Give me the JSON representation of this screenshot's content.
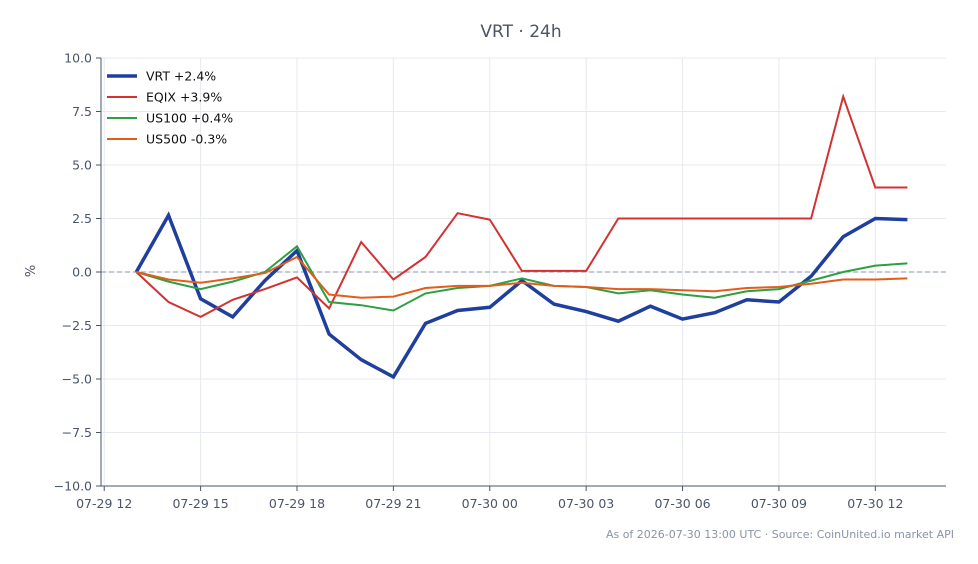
{
  "chart_data": {
    "type": "line",
    "title": "VRT · 24h",
    "xlabel": "",
    "ylabel": "%",
    "ylim": [
      -10,
      10
    ],
    "y_ticks": [
      10.0,
      7.5,
      5.0,
      2.5,
      0.0,
      -2.5,
      -5.0,
      -7.5,
      -10.0
    ],
    "y_tick_labels": [
      "10.0",
      "7.5",
      "5.0",
      "2.5",
      "0.0",
      "−2.5",
      "−5.0",
      "−7.5",
      "−10.0"
    ],
    "x_tick_labels": [
      "07-29 12",
      "07-29 15",
      "07-29 18",
      "07-29 21",
      "07-30 00",
      "07-30 03",
      "07-30 06",
      "07-30 09",
      "07-30 12"
    ],
    "x_tick_hours": [
      12,
      15,
      18,
      21,
      24,
      27,
      30,
      33,
      36
    ],
    "x_range_hours": [
      11.9,
      38.2
    ],
    "x_hours": [
      13,
      14,
      15,
      16,
      17,
      18,
      19,
      20,
      21,
      22,
      23,
      24,
      25,
      26,
      27,
      28,
      29,
      30,
      31,
      32,
      33,
      34,
      35,
      36,
      37
    ],
    "reference_line": 0,
    "grid": true,
    "legend_position": "top-left",
    "series": [
      {
        "name": "VRT +2.4%",
        "color": "#1f3f9e",
        "width": 3.5,
        "values": [
          0.0,
          2.65,
          -1.25,
          -2.1,
          -0.4,
          1.0,
          -2.9,
          -4.1,
          -4.9,
          -2.4,
          -1.8,
          -1.65,
          -0.4,
          -1.5,
          -1.85,
          -2.3,
          -1.6,
          -2.2,
          -1.9,
          -1.3,
          -1.4,
          -0.2,
          1.65,
          2.5,
          2.45
        ]
      },
      {
        "name": "EQIX +3.9%",
        "color": "#d23232",
        "width": 2,
        "values": [
          0.0,
          -1.4,
          -2.1,
          -1.3,
          -0.8,
          -0.25,
          -1.7,
          1.4,
          -0.35,
          0.7,
          2.75,
          2.45,
          0.05,
          0.05,
          0.05,
          2.5,
          2.5,
          2.5,
          2.5,
          2.5,
          2.5,
          2.5,
          8.2,
          3.95,
          3.95
        ]
      },
      {
        "name": "US100 +0.4%",
        "color": "#2ca042",
        "width": 2,
        "values": [
          0.0,
          -0.45,
          -0.8,
          -0.45,
          0.0,
          1.2,
          -1.4,
          -1.55,
          -1.8,
          -1.0,
          -0.75,
          -0.65,
          -0.3,
          -0.65,
          -0.7,
          -1.0,
          -0.85,
          -1.05,
          -1.2,
          -0.9,
          -0.8,
          -0.4,
          0.0,
          0.3,
          0.4
        ]
      },
      {
        "name": "US500 -0.3%",
        "color": "#e35d1a",
        "width": 2,
        "values": [
          0.0,
          -0.35,
          -0.5,
          -0.3,
          -0.05,
          0.7,
          -1.05,
          -1.2,
          -1.15,
          -0.75,
          -0.65,
          -0.65,
          -0.5,
          -0.65,
          -0.7,
          -0.8,
          -0.8,
          -0.85,
          -0.9,
          -0.75,
          -0.7,
          -0.55,
          -0.35,
          -0.35,
          -0.3
        ]
      }
    ],
    "footer": "As of 2026-07-30 13:00 UTC · Source: CoinUnited.io market API"
  }
}
